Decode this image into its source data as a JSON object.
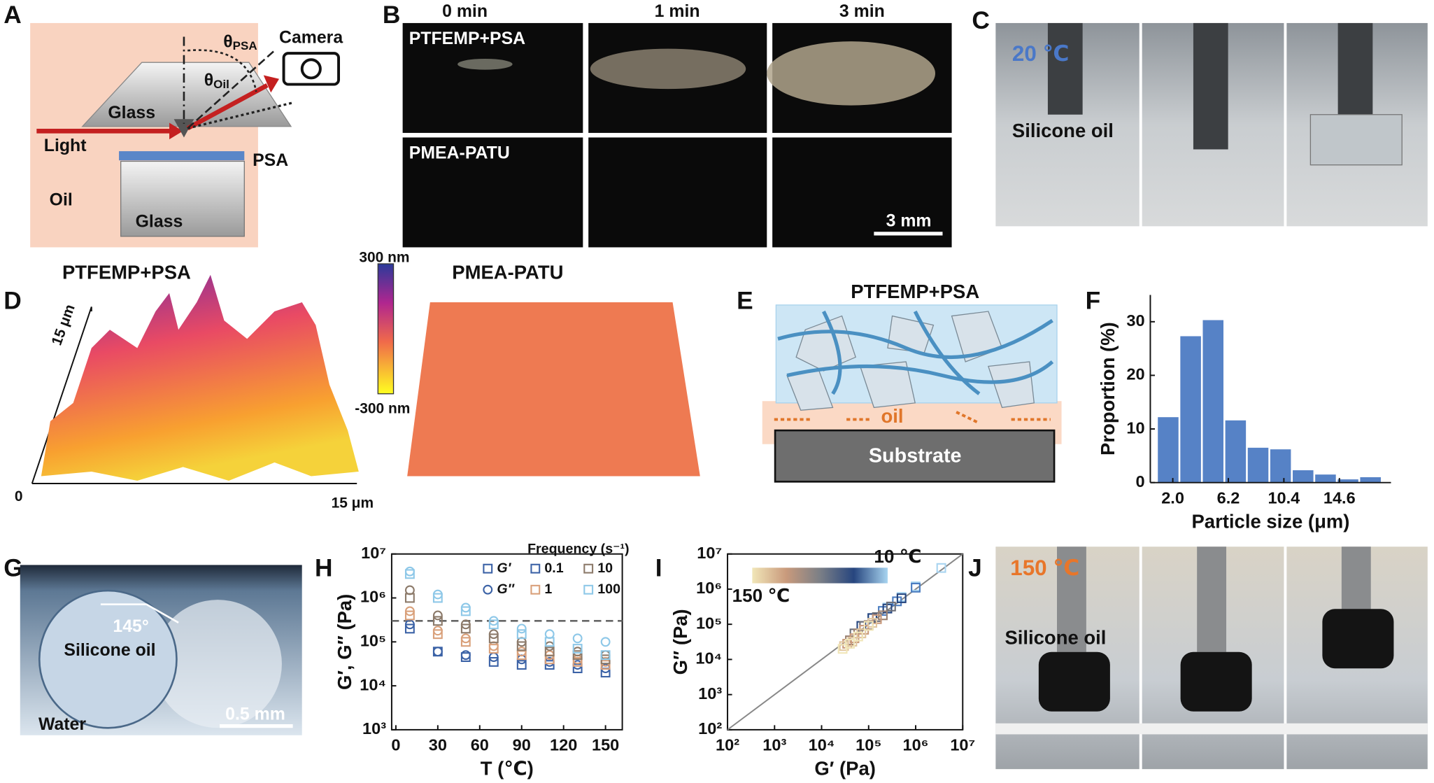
{
  "panels": {
    "labels": [
      "A",
      "B",
      "C",
      "D",
      "E",
      "F",
      "G",
      "H",
      "I",
      "J"
    ],
    "A": {
      "glass_top": "Glass",
      "light": "Light",
      "camera": "Camera",
      "theta_psa": {
        "symbol": "θ",
        "sub": "PSA"
      },
      "theta_oil": {
        "symbol": "θ",
        "sub": "Oil"
      },
      "psa": "PSA",
      "oil": "Oil",
      "glass_bottom": "Glass"
    },
    "B": {
      "times": [
        "0 min",
        "1 min",
        "3 min"
      ],
      "rows": [
        "PTFEMP+PSA",
        "PMEA-PATU"
      ],
      "scale_bar": "3 mm"
    },
    "C": {
      "temperature": "20 ℃",
      "liquid": "Silicone oil"
    },
    "D": {
      "left_title": "PTFEMP+PSA",
      "right_title": "PMEA-PATU",
      "colorbar_max": "300 nm",
      "colorbar_min": "-300 nm",
      "y_extent": "15 μm",
      "origin": "0",
      "x_extent": "15 μm"
    },
    "E": {
      "title": "PTFEMP+PSA",
      "oil": "oil",
      "substrate": "Substrate"
    },
    "G": {
      "angle": "145°",
      "liquid": "Silicone oil",
      "medium": "Water",
      "scale_bar": "0.5 mm"
    },
    "J": {
      "temperature": "150 ℃",
      "liquid": "Silicone oil"
    }
  },
  "chart_data": [
    {
      "type": "histogram",
      "xlabel": "Particle size (μm)",
      "ylabel": "Proportion (%)",
      "bins": [
        0.8,
        2.5,
        4.2,
        5.9,
        7.6,
        9.3,
        11.0,
        12.7,
        14.4,
        16.1,
        17.8
      ],
      "values": [
        12.2,
        27.3,
        30.3,
        11.6,
        6.5,
        6.2,
        2.3,
        1.5,
        0.6,
        1.0
      ],
      "color": "#5682c6",
      "xlim": [
        0.3,
        18.5
      ],
      "ylim": [
        0,
        35
      ],
      "xticks": [
        {
          "value": 2,
          "label": "2.0"
        },
        6.2,
        10.4,
        14.6
      ],
      "yticks": [
        0,
        10,
        20,
        30
      ]
    },
    {
      "type": "scatter",
      "xlabel": "T (℃)",
      "ylabel": "G′, G″ (Pa)",
      "log_y": true,
      "x": [
        10,
        30,
        50,
        70,
        90,
        110,
        130,
        150
      ],
      "xlim": [
        -3,
        162
      ],
      "ylim": [
        1000,
        10000000
      ],
      "xticks": [
        0,
        30,
        60,
        90,
        120,
        150
      ],
      "yticks": [
        {
          "value": 1000,
          "label": "10³"
        },
        {
          "value": 10000,
          "label": "10⁴"
        },
        {
          "value": 100000,
          "label": "10⁵"
        },
        {
          "value": 1000000,
          "label": "10⁶"
        },
        {
          "value": 10000000,
          "label": "10⁷"
        }
      ],
      "reference_line": 300000,
      "legend_title": "Frequency (s⁻¹)",
      "quantities": [
        "G′",
        "G″"
      ],
      "series": [
        {
          "name": "0.1",
          "color": "#3b62a6",
          "values": [
            [
              200000,
              60000,
              45000,
              35000,
              30000,
              30000,
              25000,
              20000
            ],
            [
              250000,
              60000,
              50000,
              45000,
              40000,
              35000,
              30000,
              25000
            ]
          ]
        },
        {
          "name": "1",
          "color": "#d9a07a",
          "values": [
            [
              400000,
              150000,
              100000,
              70000,
              50000,
              40000,
              35000,
              30000
            ],
            [
              500000,
              180000,
              120000,
              80000,
              60000,
              50000,
              40000,
              35000
            ]
          ]
        },
        {
          "name": "10",
          "color": "#8c7a6a",
          "values": [
            [
              1000000,
              300000,
              200000,
              120000,
              80000,
              60000,
              50000,
              40000
            ],
            [
              1500000,
              400000,
              250000,
              150000,
              100000,
              80000,
              60000,
              50000
            ]
          ]
        },
        {
          "name": "100",
          "color": "#8ec8e8",
          "values": [
            [
              3500000,
              1000000,
              500000,
              250000,
              150000,
              100000,
              70000,
              50000
            ],
            [
              4000000,
              1200000,
              600000,
              300000,
              200000,
              150000,
              120000,
              100000
            ]
          ]
        }
      ]
    },
    {
      "type": "scatter",
      "xlabel": "G′ (Pa)",
      "ylabel": "G″ (Pa)",
      "log_x": true,
      "log_y": true,
      "xlim": [
        100,
        10000000
      ],
      "ylim": [
        100,
        10000000
      ],
      "xticks": [
        {
          "value": 100,
          "label": "10²"
        },
        {
          "value": 1000,
          "label": "10³"
        },
        {
          "value": 10000,
          "label": "10⁴"
        },
        {
          "value": 100000,
          "label": "10⁵"
        },
        {
          "value": 1000000,
          "label": "10⁶"
        },
        {
          "value": 10000000,
          "label": "10⁷"
        }
      ],
      "yticks": [
        {
          "value": 100,
          "label": "10²"
        },
        {
          "value": 1000,
          "label": "10³"
        },
        {
          "value": 10000,
          "label": "10⁴"
        },
        {
          "value": 100000,
          "label": "10⁵"
        },
        {
          "value": 1000000,
          "label": "10⁶"
        },
        {
          "value": 10000000,
          "label": "10⁷"
        }
      ],
      "diagonal": true,
      "colorbar": {
        "labels": [
          "150 ℃",
          "10 ℃"
        ],
        "colors": [
          "#f1e6b8",
          "#c99a7c",
          "#7b7f86",
          "#27467f",
          "#a8d4f0"
        ]
      },
      "series": [
        {
          "color": "#a8d4f0",
          "x": [
            3500000,
            1000000,
            500000,
            250000
          ],
          "y": [
            4000000,
            1200000,
            600000,
            300000
          ]
        },
        {
          "color": "#4a7cc0",
          "x": [
            1000000,
            400000,
            200000,
            120000
          ],
          "y": [
            1100000,
            450000,
            240000,
            150000
          ]
        },
        {
          "color": "#27467f",
          "x": [
            500000,
            250000,
            120000,
            70000
          ],
          "y": [
            550000,
            280000,
            150000,
            90000
          ]
        },
        {
          "color": "#6d6f78",
          "x": [
            300000,
            150000,
            80000,
            50000
          ],
          "y": [
            320000,
            160000,
            90000,
            55000
          ]
        },
        {
          "color": "#9a8070",
          "x": [
            200000,
            100000,
            60000,
            40000
          ],
          "y": [
            180000,
            95000,
            55000,
            35000
          ]
        },
        {
          "color": "#c99a7c",
          "x": [
            150000,
            80000,
            50000,
            35000
          ],
          "y": [
            140000,
            70000,
            40000,
            28000
          ]
        },
        {
          "color": "#e2c7a0",
          "x": [
            120000,
            70000,
            45000,
            30000
          ],
          "y": [
            110000,
            55000,
            32000,
            24000
          ]
        },
        {
          "color": "#f1e6b8",
          "x": [
            100000,
            60000,
            40000,
            28000
          ],
          "y": [
            90000,
            45000,
            28000,
            20000
          ]
        }
      ]
    }
  ]
}
